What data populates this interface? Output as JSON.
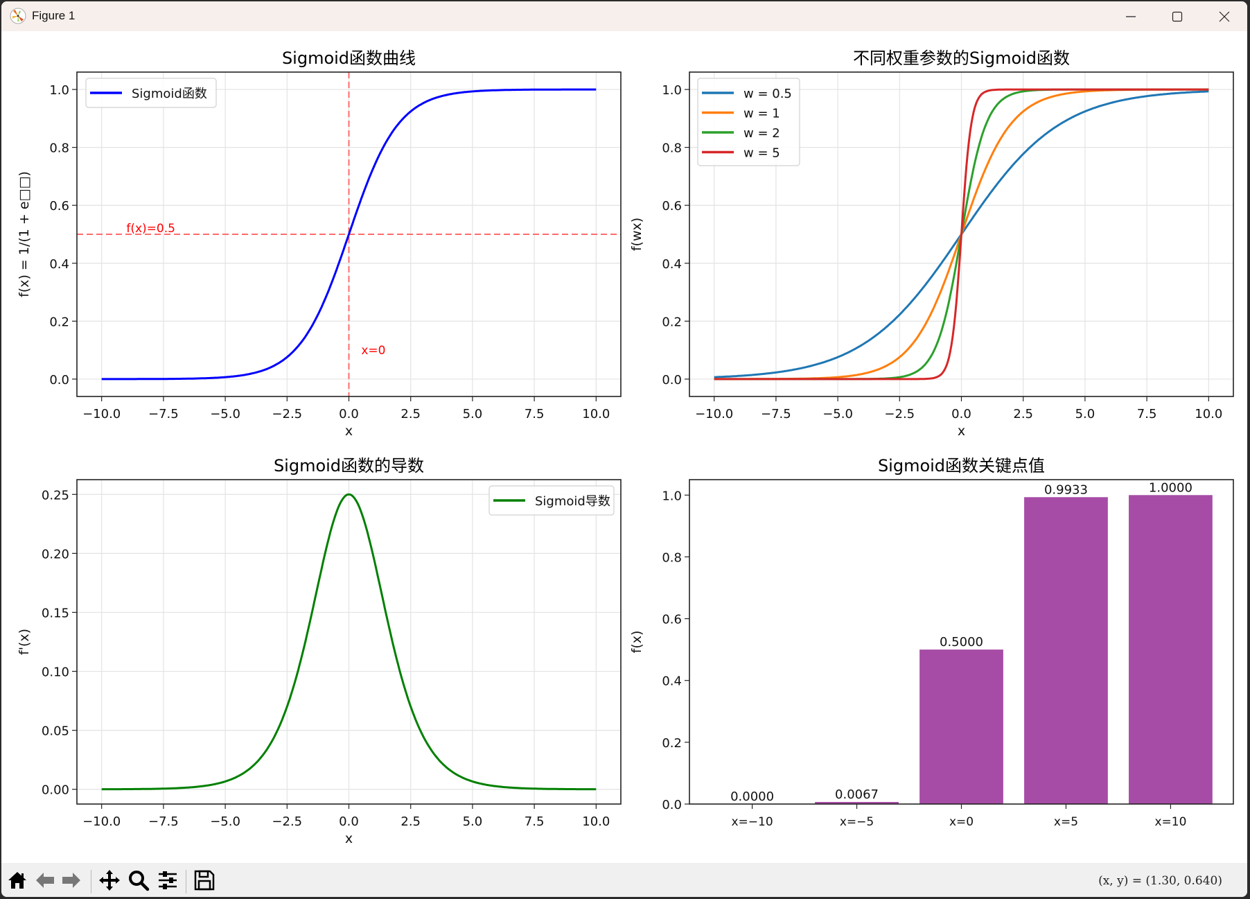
{
  "window": {
    "title": "Figure 1",
    "controls": {
      "minimize": "minimize",
      "maximize": "maximize",
      "close": "close"
    }
  },
  "toolbar": {
    "buttons": [
      {
        "name": "home",
        "icon": "home-icon"
      },
      {
        "name": "back",
        "icon": "arrow-left-icon"
      },
      {
        "name": "forward",
        "icon": "arrow-right-icon"
      },
      {
        "name": "pan",
        "icon": "move-icon"
      },
      {
        "name": "zoom",
        "icon": "magnifier-icon"
      },
      {
        "name": "configure-subplots",
        "icon": "sliders-icon"
      },
      {
        "name": "save",
        "icon": "floppy-disk-icon"
      }
    ],
    "coords": "(x,  y) = (1.30,  0.640)"
  },
  "chart_data": [
    {
      "type": "line",
      "title": "Sigmoid函数曲线",
      "xlabel": "x",
      "ylabel": "f(x) = 1/(1 + e□□)",
      "xlim": [
        -11.0,
        11.0
      ],
      "ylim": [
        -0.05,
        1.05
      ],
      "xticks": [
        "−10.0",
        "−7.5",
        "−5.0",
        "−2.5",
        "0.0",
        "2.5",
        "5.0",
        "7.5",
        "10.0"
      ],
      "yticks": [
        "0.0",
        "0.2",
        "0.4",
        "0.6",
        "0.8",
        "1.0"
      ],
      "grid": true,
      "legend_position": "upper left",
      "series": [
        {
          "name": "Sigmoid函数",
          "color": "#0000ff",
          "function": "1/(1+exp(-x))",
          "x_range": [
            -10,
            10
          ]
        }
      ],
      "annotations": [
        {
          "type": "hline",
          "y": 0.5,
          "color": "#ff6b6b",
          "style": "dashed"
        },
        {
          "type": "vline",
          "x": 0,
          "color": "#ff6b6b",
          "style": "dashed"
        },
        {
          "type": "text",
          "text": "f(x)=0.5",
          "x": -9,
          "y": 0.5,
          "color": "#ff0000"
        },
        {
          "type": "text",
          "text": "x=0",
          "x": 0.5,
          "y": 0.1,
          "color": "#ff0000"
        }
      ]
    },
    {
      "type": "line",
      "title": "不同权重参数的Sigmoid函数",
      "xlabel": "x",
      "ylabel": "f(wx)",
      "xlim": [
        -11.0,
        11.0
      ],
      "ylim": [
        -0.05,
        1.05
      ],
      "xticks": [
        "−10.0",
        "−7.5",
        "−5.0",
        "−2.5",
        "0.0",
        "2.5",
        "5.0",
        "7.5",
        "10.0"
      ],
      "yticks": [
        "0.0",
        "0.2",
        "0.4",
        "0.6",
        "0.8",
        "1.0"
      ],
      "grid": true,
      "legend_position": "upper left",
      "series": [
        {
          "name": "w = 0.5",
          "w": 0.5,
          "color": "#1f77b4"
        },
        {
          "name": "w = 1",
          "w": 1,
          "color": "#ff7f0e"
        },
        {
          "name": "w = 2",
          "w": 2,
          "color": "#2ca02c"
        },
        {
          "name": "w = 5",
          "w": 5,
          "color": "#d62728"
        }
      ]
    },
    {
      "type": "line",
      "title": "Sigmoid函数的导数",
      "xlabel": "x",
      "ylabel": "f'(x)",
      "xlim": [
        -11.0,
        11.0
      ],
      "ylim": [
        -0.0125,
        0.2625
      ],
      "xticks": [
        "−10.0",
        "−7.5",
        "−5.0",
        "−2.5",
        "0.0",
        "2.5",
        "5.0",
        "7.5",
        "10.0"
      ],
      "yticks": [
        "0.00",
        "0.05",
        "0.10",
        "0.15",
        "0.20",
        "0.25"
      ],
      "grid": true,
      "legend_position": "upper right",
      "series": [
        {
          "name": "Sigmoid导数",
          "color": "#008000",
          "function": "s(x)*(1-s(x))",
          "x_range": [
            -10,
            10
          ]
        }
      ]
    },
    {
      "type": "bar",
      "title": "Sigmoid函数关键点值",
      "xlabel": "",
      "ylabel": "f(x)",
      "ylim": [
        0,
        1.05
      ],
      "yticks": [
        "0.0",
        "0.2",
        "0.4",
        "0.6",
        "0.8",
        "1.0"
      ],
      "grid": false,
      "categories": [
        "x=−10",
        "x=−5",
        "x=0",
        "x=5",
        "x=10"
      ],
      "values": [
        0.0,
        0.0067,
        0.5,
        0.9933,
        1.0
      ],
      "labels": [
        "0.0000",
        "0.0067",
        "0.5000",
        "0.9933",
        "1.0000"
      ],
      "color": "#a64ca6"
    }
  ]
}
